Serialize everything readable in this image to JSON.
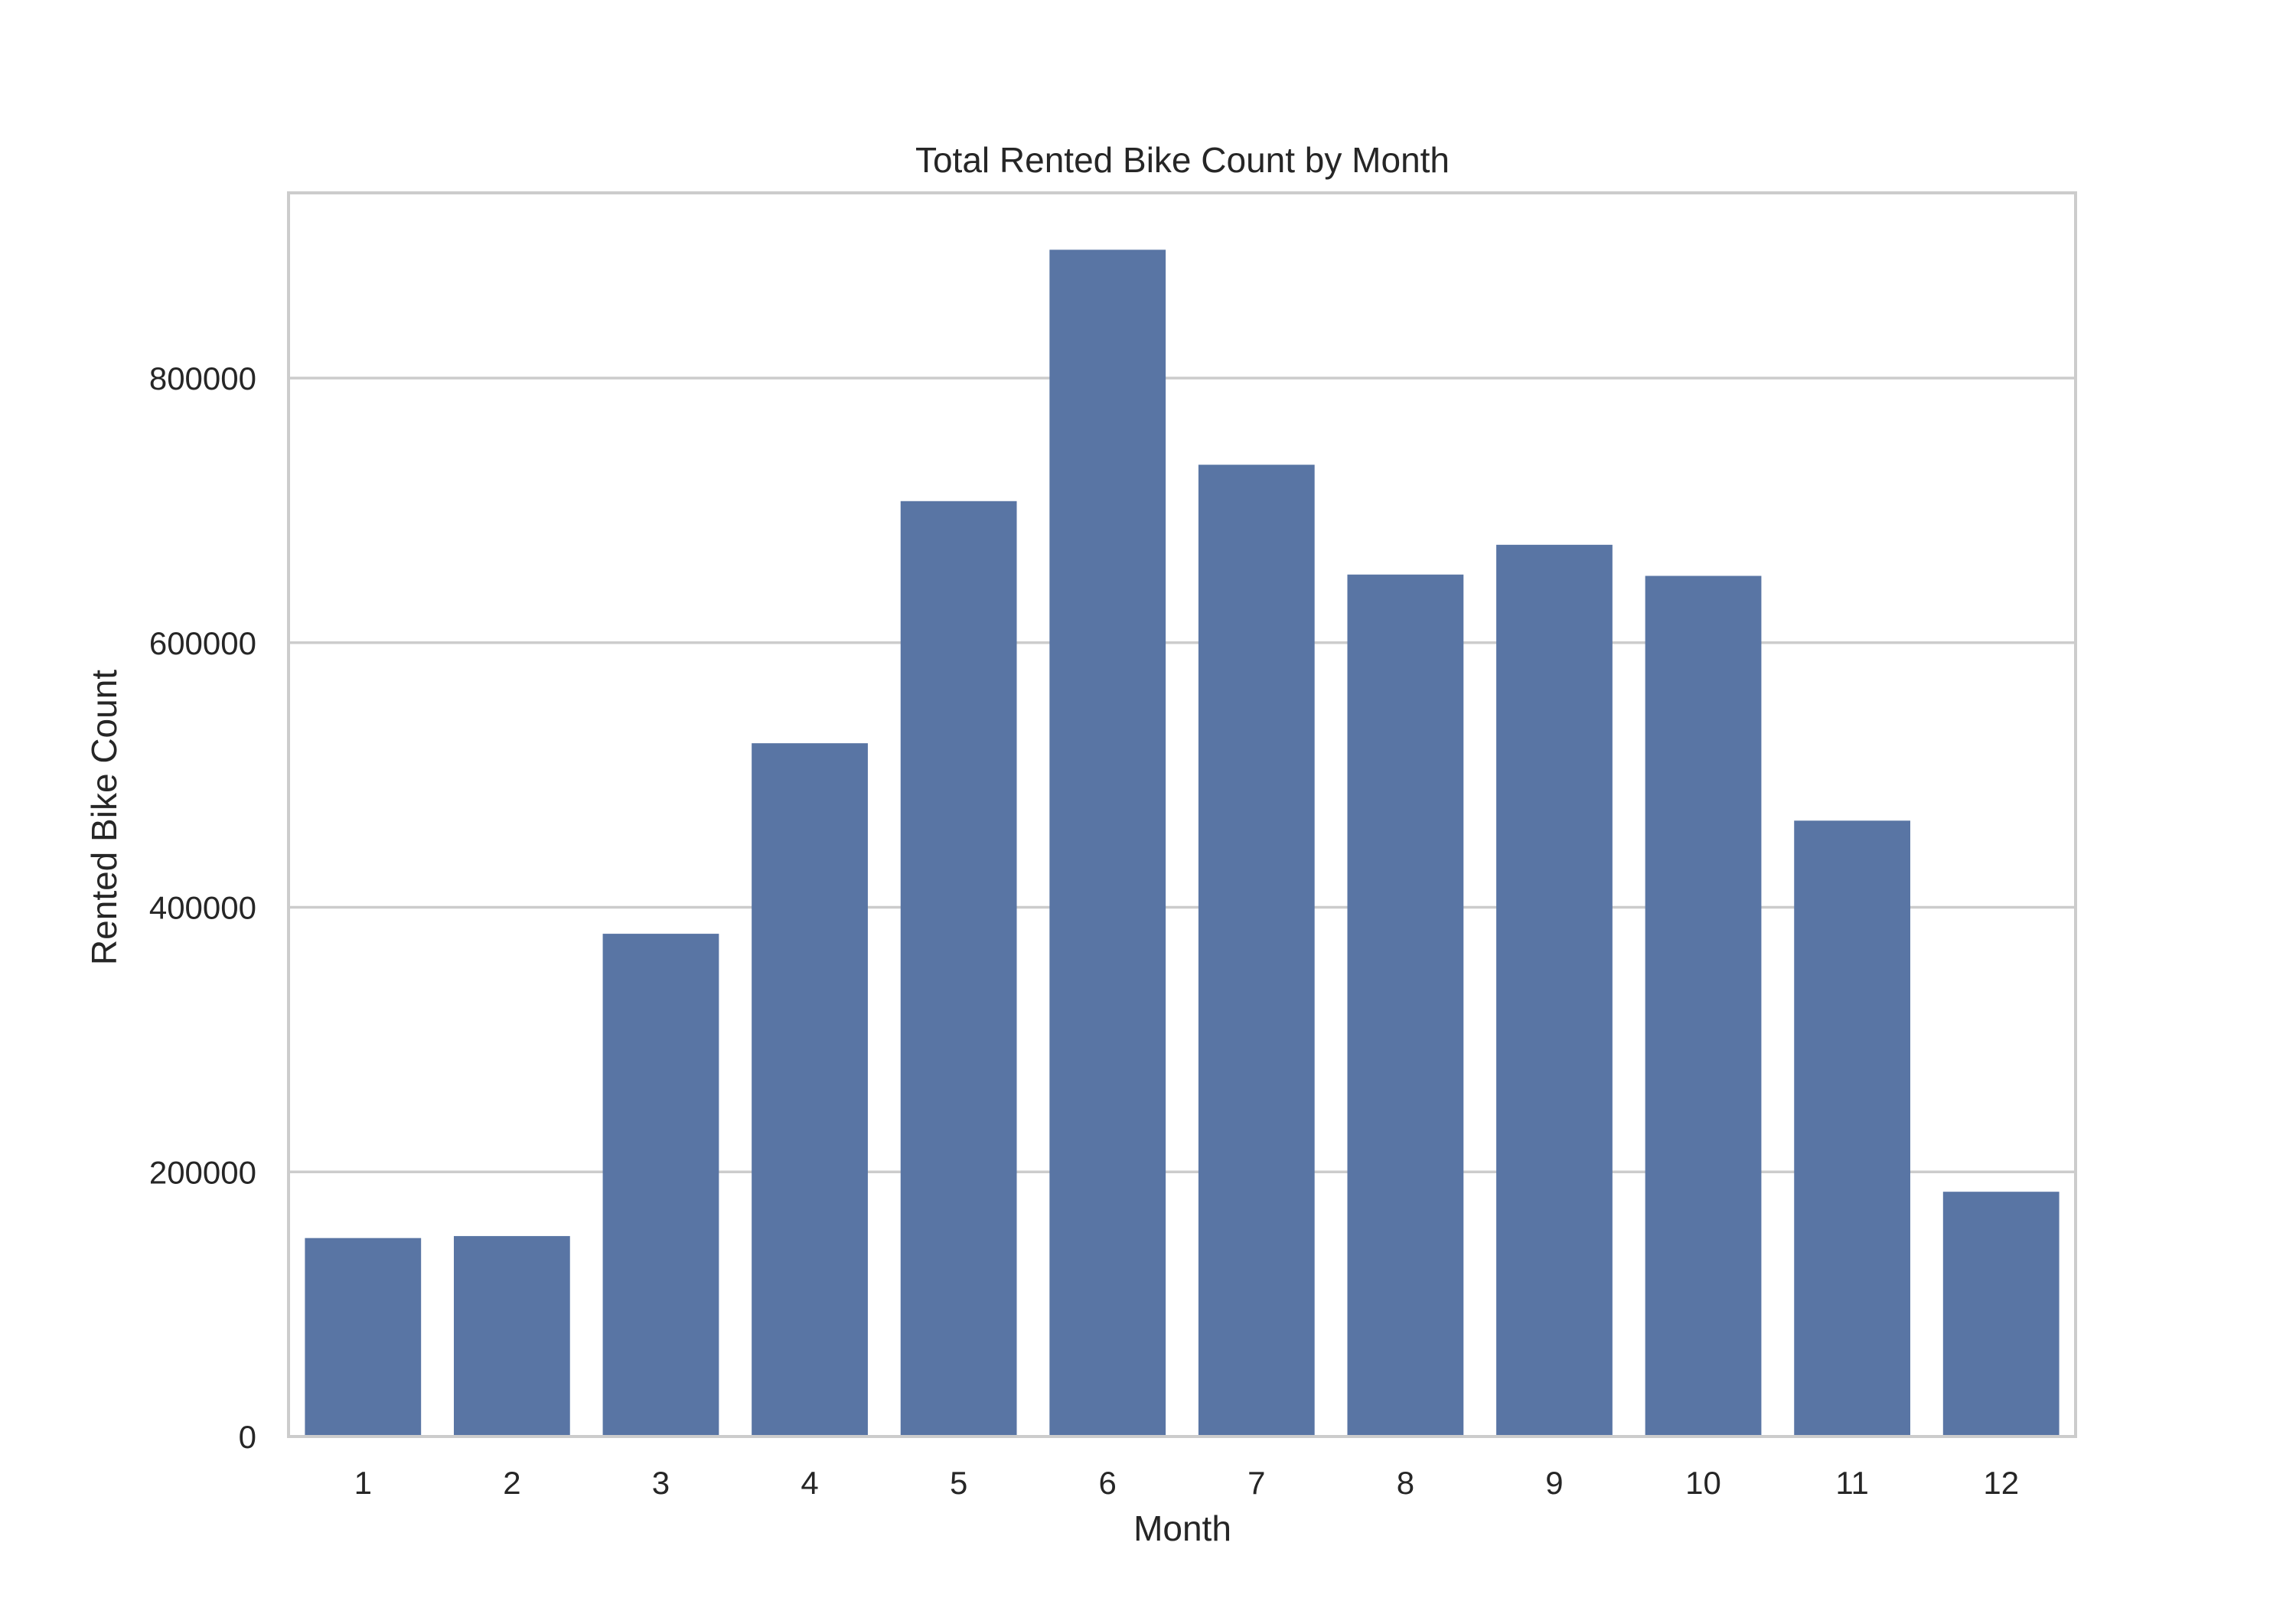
{
  "chart_data": {
    "type": "bar",
    "title": "Total Rented Bike Count by Month",
    "xlabel": "Month",
    "ylabel": "Rented Bike Count",
    "categories": [
      "1",
      "2",
      "3",
      "4",
      "5",
      "6",
      "7",
      "8",
      "9",
      "10",
      "11",
      "12"
    ],
    "values": [
      150000,
      151500,
      380000,
      524000,
      707000,
      897000,
      734500,
      651500,
      674000,
      650500,
      465500,
      185000
    ],
    "ylim": [
      0,
      940000
    ],
    "yticks": [
      0,
      200000,
      400000,
      600000,
      800000
    ],
    "ytick_labels": [
      "0",
      "200000",
      "400000",
      "600000",
      "800000"
    ],
    "grid": "horizontal",
    "colors": {
      "bar": "#5975a4",
      "grid": "#cccccc",
      "frame": "#cccccc",
      "background": "#ffffff"
    }
  }
}
